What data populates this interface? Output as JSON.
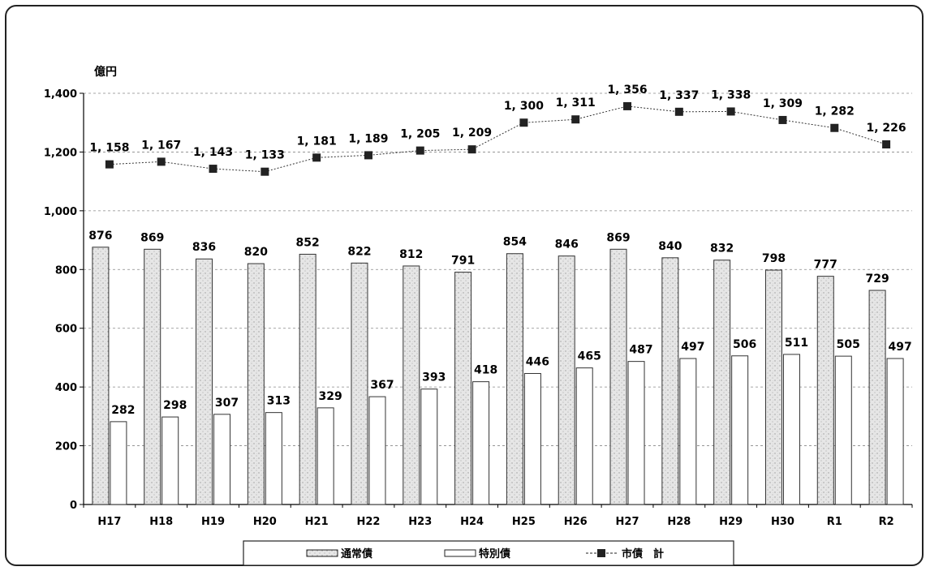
{
  "chart_data": {
    "type": "bar",
    "ylabel": "億円",
    "ylim": [
      0,
      1400
    ],
    "yticks": [
      0,
      200,
      400,
      600,
      800,
      1000,
      1200,
      1400
    ],
    "ytick_labels": [
      "0",
      "200",
      "400",
      "600",
      "800",
      "1,000",
      "1,200",
      "1,400"
    ],
    "grid": true,
    "legend_position": "bottom-center",
    "categories": [
      "H17",
      "H18",
      "H19",
      "H20",
      "H21",
      "H22",
      "H23",
      "H24",
      "H25",
      "H26",
      "H27",
      "H28",
      "H29",
      "H30",
      "R1",
      "R2"
    ],
    "series": [
      {
        "name": "通常債",
        "type": "bar",
        "values": [
          876,
          869,
          836,
          820,
          852,
          822,
          812,
          791,
          854,
          846,
          869,
          840,
          832,
          798,
          777,
          729
        ],
        "labels": [
          "876",
          "869",
          "836",
          "820",
          "852",
          "822",
          "812",
          "791",
          "854",
          "846",
          "869",
          "840",
          "832",
          "798",
          "777",
          "729"
        ],
        "fill": "#e4e4e4"
      },
      {
        "name": "特別債",
        "type": "bar",
        "values": [
          282,
          298,
          307,
          313,
          329,
          367,
          393,
          418,
          446,
          465,
          487,
          497,
          506,
          511,
          505,
          497
        ],
        "labels": [
          "282",
          "298",
          "307",
          "313",
          "329",
          "367",
          "393",
          "418",
          "446",
          "465",
          "487",
          "497",
          "506",
          "511",
          "505",
          "497"
        ],
        "fill": "#ffffff"
      },
      {
        "name": "市債　計",
        "type": "line",
        "values": [
          1158,
          1167,
          1143,
          1133,
          1181,
          1189,
          1205,
          1209,
          1300,
          1311,
          1356,
          1337,
          1338,
          1309,
          1282,
          1226
        ],
        "labels": [
          "1, 158",
          "1, 167",
          "1, 143",
          "1, 133",
          "1, 181",
          "1, 189",
          "1, 205",
          "1, 209",
          "1, 300",
          "1, 311",
          "1, 356",
          "1, 337",
          "1, 338",
          "1, 309",
          "1, 282",
          "1, 226"
        ],
        "color": "#222222"
      }
    ]
  }
}
